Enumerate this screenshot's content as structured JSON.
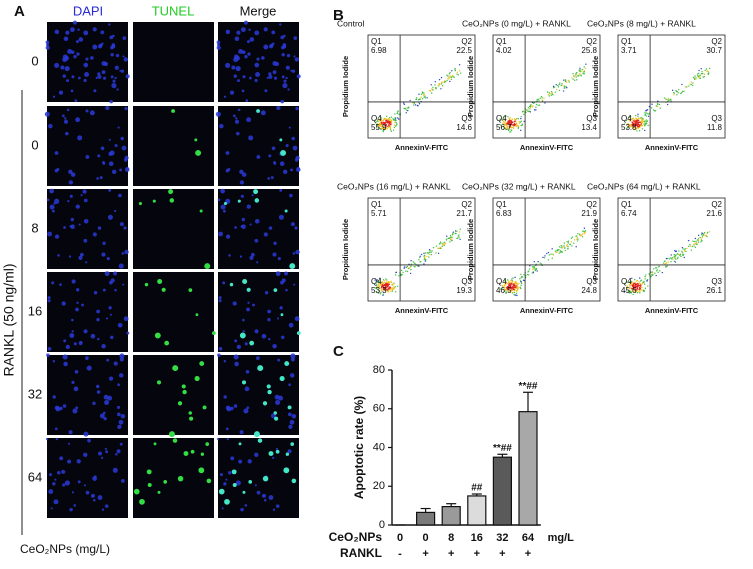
{
  "panelA": {
    "label": "A",
    "columns": [
      "DAPI",
      "TUNEL",
      "Merge"
    ],
    "rows": [
      "0",
      "0",
      "8",
      "16",
      "32",
      "64"
    ],
    "side_label": "RANKL (50 ng/ml)",
    "x_label": "CeO₂NPs (mg/L)"
  },
  "panelB": {
    "label": "B",
    "y_label": "Propidium Iodide",
    "x_label": "AnnexinV-FITC",
    "plots": [
      {
        "title": "Control",
        "quadrants": [
          {
            "label": "Q1",
            "value": 6.98
          },
          {
            "label": "Q2",
            "value": 22.5
          },
          {
            "label": "Q4",
            "value": 55.9
          },
          {
            "label": "Q3",
            "value": 14.6
          }
        ]
      },
      {
        "title": "CeO₂NPs (0 mg/L) + RANKL",
        "quadrants": [
          {
            "label": "Q1",
            "value": 4.02
          },
          {
            "label": "Q2",
            "value": 25.8
          },
          {
            "label": "Q4",
            "value": 56.7
          },
          {
            "label": "Q3",
            "value": 13.4
          }
        ]
      },
      {
        "title": "CeO₂NPs (8 mg/L) + RANKL",
        "quadrants": [
          {
            "label": "Q1",
            "value": 3.71
          },
          {
            "label": "Q2",
            "value": 30.7
          },
          {
            "label": "Q4",
            "value": 53.8
          },
          {
            "label": "Q3",
            "value": 11.8
          }
        ]
      },
      {
        "title": "CeO₂NPs (16 mg/L) + RANKL",
        "quadrants": [
          {
            "label": "Q1",
            "value": 5.71
          },
          {
            "label": "Q2",
            "value": 21.7
          },
          {
            "label": "Q4",
            "value": 53.3
          },
          {
            "label": "Q3",
            "value": 19.3
          }
        ]
      },
      {
        "title": "CeO₂NPs (32 mg/L) + RANKL",
        "quadrants": [
          {
            "label": "Q1",
            "value": 6.83
          },
          {
            "label": "Q2",
            "value": 21.9
          },
          {
            "label": "Q4",
            "value": 46.5
          },
          {
            "label": "Q3",
            "value": 24.8
          }
        ]
      },
      {
        "title": "CeO₂NPs (64 mg/L) + RANKL",
        "quadrants": [
          {
            "label": "Q1",
            "value": 6.74
          },
          {
            "label": "Q2",
            "value": 21.6
          },
          {
            "label": "Q4",
            "value": 45.6
          },
          {
            "label": "Q3",
            "value": 26.1
          }
        ]
      }
    ]
  },
  "chart_data": {
    "type": "bar",
    "panel_label": "C",
    "ylabel": "Apoptotic rate (%)",
    "categories": [
      "0",
      "0",
      "8",
      "16",
      "32",
      "64"
    ],
    "category_row_label": "CeO₂NPs",
    "category_unit": "mg/L",
    "rankl_label": "RANKL",
    "rankl": [
      "-",
      "+",
      "+",
      "+",
      "+",
      "+"
    ],
    "values": [
      0,
      6.5,
      9.5,
      15,
      35,
      58.5
    ],
    "errors": [
      0,
      2,
      1.5,
      1,
      1.5,
      10
    ],
    "annotations": [
      null,
      null,
      null,
      "##",
      "**##",
      "**##"
    ],
    "colors": [
      "#ffffff",
      "#7a7a7a",
      "#9a9a9a",
      "#dcdcdc",
      "#5a5a5a",
      "#a8a8a8"
    ],
    "ylim": [
      0,
      80
    ],
    "yticks": [
      0,
      20,
      40,
      60,
      80
    ]
  }
}
